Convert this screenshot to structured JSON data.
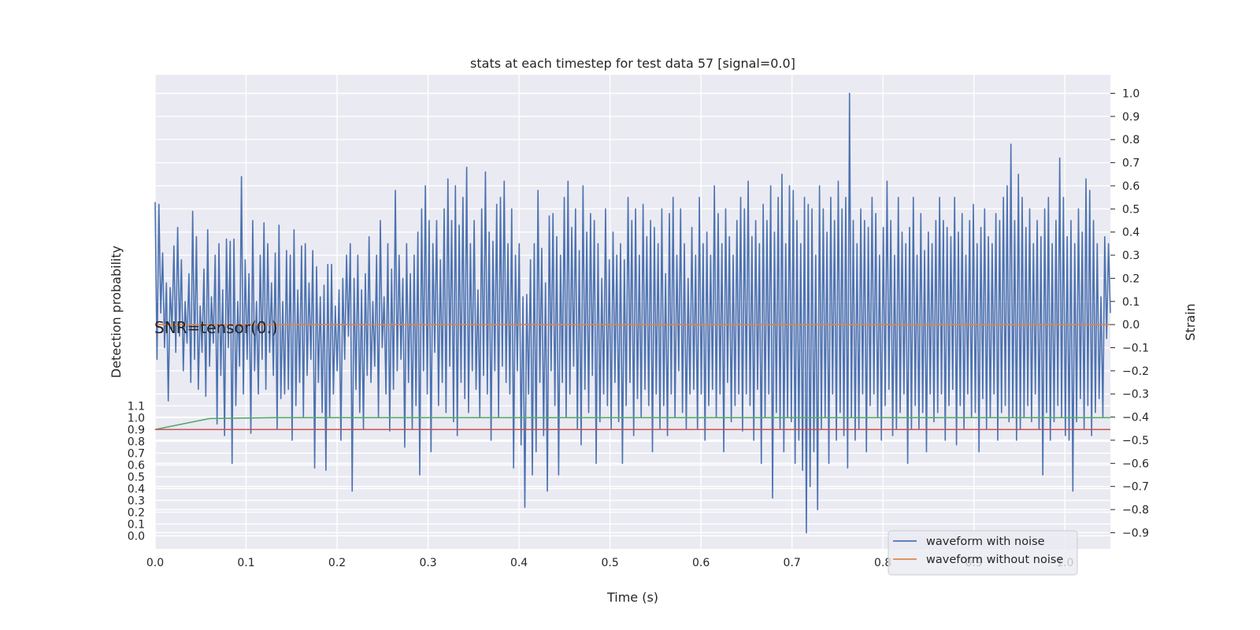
{
  "chart_data": {
    "type": "line",
    "title": "stats at each timestep for test data 57 [signal=0.0]",
    "xlabel": "Time (s)",
    "ylabel_left": "Detection probability",
    "ylabel_right": "Strain",
    "annotation": "SNR=tensor(0.)",
    "xlim": [
      0.0,
      1.05
    ],
    "ylim_right": [
      -0.97,
      1.08
    ],
    "ylim_left": [
      -0.11,
      3.9
    ],
    "grid": true,
    "legend_position": "bottom-right",
    "x_ticks": [
      "0.0",
      "0.1",
      "0.2",
      "0.3",
      "0.4",
      "0.5",
      "0.6",
      "0.7",
      "0.8",
      "0.9",
      "1.0"
    ],
    "y_right_ticks": [
      "1.0",
      "0.9",
      "0.8",
      "0.7",
      "0.6",
      "0.5",
      "0.4",
      "0.3",
      "0.2",
      "0.1",
      "0.0",
      "−0.1",
      "−0.2",
      "−0.3",
      "−0.4",
      "−0.5",
      "−0.6",
      "−0.7",
      "−0.8",
      "−0.9"
    ],
    "y_left_ticks": [
      "0.0",
      "0.1",
      "0.2",
      "0.3",
      "0.4",
      "0.5",
      "0.6",
      "0.7",
      "0.8",
      "0.9",
      "1.0",
      "1.1"
    ],
    "colors": {
      "plot_background": "#eaeaf2",
      "grid": "#ffffff",
      "waveform_with_noise": "#4c72b0",
      "waveform_without_noise": "#dd8452",
      "detection_probability": "#55a868",
      "threshold": "#c44e52"
    },
    "series": [
      {
        "name": "waveform with noise",
        "axis": "right",
        "x_start": 0.0,
        "x_end": 1.05,
        "values": [
          0.53,
          -0.15,
          0.52,
          0.05,
          0.31,
          -0.1,
          0.18,
          -0.33,
          0.16,
          -0.02,
          0.34,
          -0.12,
          0.42,
          -0.05,
          0.28,
          -0.2,
          0.1,
          -0.08,
          0.22,
          -0.25,
          0.49,
          -0.15,
          0.38,
          -0.28,
          0.08,
          -0.12,
          0.24,
          -0.31,
          0.41,
          -0.18,
          0.12,
          -0.08,
          0.3,
          -0.43,
          0.35,
          -0.22,
          0.15,
          -0.48,
          0.37,
          -0.1,
          0.36,
          -0.6,
          0.37,
          -0.35,
          0.1,
          -0.18,
          0.64,
          -0.3,
          0.28,
          -0.15,
          0.22,
          -0.47,
          0.45,
          -0.2,
          0.1,
          -0.3,
          0.3,
          -0.15,
          0.44,
          -0.28,
          0.35,
          -0.12,
          0.18,
          -0.22,
          0.31,
          -0.45,
          0.43,
          -0.32,
          0.1,
          -0.3,
          0.32,
          -0.28,
          0.3,
          -0.5,
          0.41,
          -0.35,
          0.15,
          -0.25,
          0.34,
          -0.4,
          0.35,
          -0.22,
          0.18,
          -0.15,
          0.32,
          -0.62,
          0.25,
          -0.25,
          0.12,
          -0.38,
          0.17,
          -0.63,
          0.26,
          -0.4,
          0.26,
          -0.3,
          0.08,
          -0.2,
          0.15,
          -0.5,
          0.2,
          -0.15,
          0.3,
          -0.05,
          0.35,
          -0.72,
          0.2,
          -0.28,
          0.3,
          -0.38,
          0.15,
          -0.45,
          0.22,
          -0.22,
          0.38,
          -0.25,
          0.1,
          -0.18,
          0.3,
          -0.4,
          0.45,
          -0.1,
          0.12,
          -0.3,
          0.35,
          -0.46,
          0.24,
          -0.28,
          0.58,
          -0.2,
          0.3,
          -0.15,
          0.2,
          -0.53,
          0.35,
          -0.25,
          0.22,
          -0.45,
          0.3,
          -0.35,
          0.4,
          -0.65,
          0.5,
          -0.2,
          0.6,
          -0.3,
          0.45,
          -0.55,
          0.35,
          -0.12,
          0.45,
          -0.35,
          0.28,
          -0.25,
          0.5,
          -0.38,
          0.63,
          -0.18,
          0.45,
          -0.42,
          0.6,
          -0.48,
          0.43,
          -0.25,
          0.55,
          -0.32,
          0.68,
          -0.38,
          0.35,
          -0.2,
          0.45,
          -0.28,
          0.15,
          -0.4,
          0.5,
          -0.22,
          0.66,
          -0.3,
          0.4,
          -0.5,
          0.36,
          -0.2,
          0.52,
          -0.4,
          0.55,
          -0.18,
          0.62,
          -0.25,
          0.35,
          -0.3,
          0.5,
          -0.62,
          0.3,
          -0.2,
          0.35,
          -0.52,
          0.12,
          -0.79,
          0.13,
          -0.3,
          0.28,
          -0.65,
          0.35,
          -0.55,
          0.58,
          -0.25,
          0.33,
          -0.48,
          0.18,
          -0.72,
          0.47,
          -0.2,
          0.48,
          -0.35,
          0.38,
          -0.65,
          0.3,
          -0.25,
          0.55,
          -0.4,
          0.62,
          -0.3,
          0.42,
          -0.18,
          0.5,
          -0.45,
          0.32,
          -0.52,
          0.6,
          -0.28,
          0.4,
          -0.38,
          0.48,
          -0.22,
          0.45,
          -0.6,
          0.35,
          -0.42,
          0.2,
          -0.3,
          0.5,
          -0.35,
          0.28,
          -0.45,
          0.4,
          -0.25,
          0.3,
          -0.42,
          0.35,
          -0.6,
          0.28,
          -0.35,
          0.55,
          -0.25,
          0.45,
          -0.48,
          0.5,
          -0.32,
          0.3,
          -0.4,
          0.52,
          -0.28,
          0.38,
          -0.35,
          0.45,
          -0.55,
          0.42,
          -0.3,
          0.35,
          -0.45,
          0.5,
          -0.35,
          0.22,
          -0.48,
          0.48,
          -0.3,
          0.55,
          -0.4,
          0.3,
          -0.2,
          0.5,
          -0.38,
          0.35,
          -0.45,
          0.2,
          -0.3,
          0.42,
          -0.28,
          0.3,
          -0.45,
          0.55,
          -0.3,
          0.35,
          -0.5,
          0.4,
          -0.35,
          0.3,
          -0.28,
          0.6,
          -0.4,
          0.48,
          -0.3,
          0.35,
          -0.55,
          0.5,
          -0.25,
          0.38,
          -0.42,
          0.3,
          -0.35,
          0.45,
          -0.3,
          0.55,
          -0.46,
          0.5,
          -0.3,
          0.62,
          -0.35,
          0.38,
          -0.5,
          0.45,
          -0.28,
          0.35,
          -0.6,
          0.52,
          -0.4,
          0.45,
          -0.3,
          0.6,
          -0.75,
          0.4,
          -0.38,
          0.55,
          -0.45,
          0.65,
          -0.55,
          0.35,
          -0.4,
          0.6,
          -0.42,
          0.58,
          -0.6,
          0.45,
          -0.5,
          0.35,
          -0.63,
          0.55,
          -0.9,
          0.52,
          -0.7,
          0.5,
          -0.55,
          0.3,
          -0.8,
          0.6,
          -0.45,
          0.5,
          -0.4,
          0.4,
          -0.6,
          0.55,
          -0.3,
          0.45,
          -0.5,
          0.62,
          -0.38,
          0.5,
          -0.48,
          0.55,
          -0.62,
          1.0,
          -0.4,
          0.45,
          -0.5,
          0.35,
          -0.45,
          0.5,
          -0.3,
          0.45,
          -0.55,
          0.42,
          -0.35,
          0.55,
          -0.3,
          0.48,
          -0.4,
          0.3,
          -0.5,
          0.42,
          -0.35,
          0.62,
          -0.28,
          0.45,
          -0.48,
          0.3,
          -0.45,
          0.55,
          -0.38,
          0.4,
          -0.3,
          0.35,
          -0.6,
          0.42,
          -0.45,
          0.55,
          -0.35,
          0.3,
          -0.45,
          0.48,
          -0.38,
          0.32,
          -0.55,
          0.4,
          -0.3,
          0.35,
          -0.42,
          0.45,
          -0.38,
          0.55,
          -0.3,
          0.45,
          -0.5,
          0.42,
          -0.35,
          0.38,
          -0.28,
          0.55,
          -0.52,
          0.4,
          -0.35,
          0.48,
          -0.45,
          0.3,
          -0.3,
          0.45,
          -0.4,
          0.52,
          -0.38,
          0.35,
          -0.55,
          0.42,
          -0.32,
          0.5,
          -0.45,
          0.38,
          -0.4,
          0.35,
          -0.3,
          0.48,
          -0.5,
          0.45,
          -0.38,
          0.55,
          -0.35,
          0.6,
          -0.42,
          0.78,
          -0.4,
          0.45,
          -0.5,
          0.65,
          -0.45,
          0.55,
          -0.4,
          0.42,
          -0.35,
          0.5,
          -0.42,
          0.35,
          -0.3,
          0.45,
          -0.45,
          0.38,
          -0.65,
          0.5,
          -0.38,
          0.55,
          -0.5,
          0.35,
          -0.42,
          0.45,
          -0.35,
          0.72,
          -0.4,
          0.55,
          -0.48,
          0.38,
          -0.5,
          0.45,
          -0.72,
          0.35,
          -0.42,
          0.5,
          -0.32,
          0.4,
          -0.45,
          0.63,
          -0.35,
          0.58,
          -0.48,
          0.45,
          -0.38,
          0.35,
          -0.32,
          0.12,
          -0.4,
          0.38,
          -0.06,
          0.35,
          0.05
        ]
      },
      {
        "name": "waveform without noise",
        "axis": "right",
        "constant": 0.0
      },
      {
        "axis": "left",
        "x": [
          0.0,
          0.06,
          0.13,
          1.05
        ],
        "values": [
          0.9,
          0.993,
          1.0,
          1.0
        ]
      },
      {
        "axis": "left",
        "constant": 0.9
      }
    ]
  }
}
